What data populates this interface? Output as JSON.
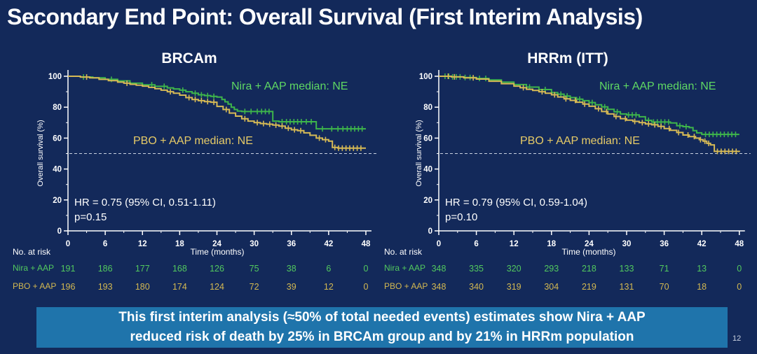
{
  "slide": {
    "title": "Secondary End Point: Overall Survival (First Interim Analysis)",
    "page_number": "12",
    "banner": {
      "line1": "This first interim analysis (≈50% of total needed events) estimates show Nira + AAP",
      "line2": "reduced risk of death by 25% in BRCAm group and by 21% in HRRm population"
    }
  },
  "colors": {
    "background": "#13295a",
    "banner_blue": "#1f74ab",
    "axis_white": "#ffffff",
    "nira_curve_green": "#3eb54b",
    "nira_text_green": "#5fd863",
    "pbo_curve_gold": "#d7ba55",
    "pbo_text_gold": "#e7cb67",
    "reference_dash": "#c9d1e0"
  },
  "chart_data": [
    {
      "type": "line",
      "subtype": "kaplan-meier",
      "title": "BRCAm",
      "xlabel": "Time (months)",
      "ylabel": "Overall survival (%)",
      "xlim": [
        0,
        48
      ],
      "ylim": [
        0,
        100
      ],
      "xticks": [
        0,
        6,
        12,
        18,
        24,
        30,
        36,
        42,
        48
      ],
      "yticks": [
        0,
        20,
        40,
        60,
        80,
        100
      ],
      "grid": false,
      "reference_line_y": 50,
      "hr_text": "HR = 0.75 (95% CI, 0.51-1.11)",
      "p_text": "p=0.15",
      "series": [
        {
          "name": "Nira + AAP",
          "label": "Nira + AAP median: NE",
          "color": "#3eb54b",
          "steps": [
            [
              0,
              100
            ],
            [
              2,
              99.5
            ],
            [
              4,
              99
            ],
            [
              6,
              98
            ],
            [
              8,
              97
            ],
            [
              10,
              95.5
            ],
            [
              12,
              94.5
            ],
            [
              14,
              93.5
            ],
            [
              16,
              92.5
            ],
            [
              17,
              91.8
            ],
            [
              18,
              91
            ],
            [
              19,
              90
            ],
            [
              20,
              89
            ],
            [
              21,
              88
            ],
            [
              22,
              87.5
            ],
            [
              23,
              87
            ],
            [
              24,
              86.5
            ],
            [
              24.8,
              85
            ],
            [
              25.3,
              83.5
            ],
            [
              25.8,
              82
            ],
            [
              26.3,
              80
            ],
            [
              26.8,
              78.5
            ],
            [
              27.3,
              77.5
            ],
            [
              28,
              77.2
            ],
            [
              33,
              71
            ],
            [
              34,
              70.6
            ],
            [
              40,
              66
            ],
            [
              48,
              66
            ]
          ],
          "censor_times": [
            2.5,
            7,
            13.5,
            15.5,
            18.5,
            20.5,
            21.5,
            22.5,
            23.5,
            28.5,
            29.5,
            30.5,
            31.2,
            31.8,
            32.4,
            34.5,
            35.2,
            35.8,
            36.4,
            37,
            37.6,
            38.4,
            39.2,
            41,
            42.5,
            43.5,
            44.3,
            45,
            45.6,
            46.2,
            46.8,
            47.4
          ]
        },
        {
          "name": "PBO + AAP",
          "label": "PBO + AAP median: NE",
          "color": "#d7ba55",
          "steps": [
            [
              0,
              100
            ],
            [
              2,
              99.5
            ],
            [
              3.5,
              99
            ],
            [
              5,
              98
            ],
            [
              6.5,
              97.2
            ],
            [
              8,
              96.2
            ],
            [
              9,
              95.5
            ],
            [
              10,
              94.8
            ],
            [
              11,
              94.2
            ],
            [
              12,
              93.6
            ],
            [
              13,
              92.8
            ],
            [
              14,
              92
            ],
            [
              15,
              91
            ],
            [
              16,
              90
            ],
            [
              17,
              89
            ],
            [
              18,
              87.8
            ],
            [
              19,
              86.2
            ],
            [
              20,
              85
            ],
            [
              21,
              84.2
            ],
            [
              22,
              83.6
            ],
            [
              23,
              83.2
            ],
            [
              24,
              80.5
            ],
            [
              25,
              78.5
            ],
            [
              26,
              76.2
            ],
            [
              27,
              74.2
            ],
            [
              28,
              72.5
            ],
            [
              29,
              71
            ],
            [
              30,
              70
            ],
            [
              31,
              69.4
            ],
            [
              32,
              69
            ],
            [
              33,
              68.4
            ],
            [
              34,
              67.8
            ],
            [
              35,
              66.4
            ],
            [
              36,
              65.4
            ],
            [
              37,
              64.8
            ],
            [
              38,
              63.4
            ],
            [
              39,
              61.8
            ],
            [
              40,
              60
            ],
            [
              41,
              59
            ],
            [
              42,
              58
            ],
            [
              42.6,
              54
            ],
            [
              43.5,
              53.5
            ],
            [
              48,
              53.5
            ]
          ],
          "censor_times": [
            3,
            9.5,
            16.5,
            19.5,
            20.5,
            21.5,
            22.5,
            23.5,
            25.5,
            28.5,
            30.5,
            31.5,
            32.5,
            33.5,
            34.5,
            35.5,
            36.5,
            37.5,
            40.5,
            41.5,
            43,
            43.6,
            44.2,
            44.8,
            45.4,
            46,
            46.6,
            47.2
          ]
        }
      ],
      "at_risk": {
        "header": "No. at risk",
        "rows": [
          {
            "name": "Nira + AAP",
            "color": "#52c95e",
            "values": [
              191,
              186,
              177,
              168,
              126,
              75,
              38,
              6,
              0
            ]
          },
          {
            "name": "PBO + AAP",
            "color": "#d3b851",
            "values": [
              196,
              193,
              180,
              174,
              124,
              72,
              39,
              12,
              0
            ]
          }
        ]
      }
    },
    {
      "type": "line",
      "subtype": "kaplan-meier",
      "title": "HRRm (ITT)",
      "xlabel": "Time (months)",
      "ylabel": "Overall survival (%)",
      "xlim": [
        0,
        48
      ],
      "ylim": [
        0,
        100
      ],
      "xticks": [
        0,
        6,
        12,
        18,
        24,
        30,
        36,
        42,
        48
      ],
      "yticks": [
        0,
        20,
        40,
        60,
        80,
        100
      ],
      "grid": false,
      "reference_line_y": 50,
      "hr_text": "HR = 0.79 (95% CI, 0.59-1.04)",
      "p_text": "p=0.10",
      "series": [
        {
          "name": "Nira + AAP",
          "label": "Nira + AAP median: NE",
          "color": "#3eb54b",
          "steps": [
            [
              0,
              100
            ],
            [
              2,
              99.6
            ],
            [
              4,
              99.2
            ],
            [
              6,
              98.6
            ],
            [
              8,
              97.6
            ],
            [
              10,
              96.2
            ],
            [
              12,
              94.6
            ],
            [
              14,
              93
            ],
            [
              16,
              91.4
            ],
            [
              18,
              89.4
            ],
            [
              19,
              88.4
            ],
            [
              20,
              87.2
            ],
            [
              21,
              86.2
            ],
            [
              22,
              85.2
            ],
            [
              23,
              84.2
            ],
            [
              24,
              83
            ],
            [
              25,
              81.6
            ],
            [
              26,
              80.2
            ],
            [
              27,
              78.6
            ],
            [
              28,
              77
            ],
            [
              29,
              75.6
            ],
            [
              30,
              75
            ],
            [
              32,
              73.8
            ],
            [
              33,
              71.5
            ],
            [
              34,
              70.4
            ],
            [
              37,
              69.8
            ],
            [
              38,
              68
            ],
            [
              39,
              67.4
            ],
            [
              40,
              66.8
            ],
            [
              40.6,
              64.8
            ],
            [
              41.2,
              63.4
            ],
            [
              42,
              62.4
            ],
            [
              48,
              62.4
            ]
          ],
          "censor_times": [
            1,
            1.6,
            2.2,
            2.8,
            3.4,
            4.2,
            5,
            6.5,
            7.5,
            14.5,
            17,
            19.5,
            20.5,
            22.5,
            24.5,
            26.5,
            28.5,
            30.3,
            30.9,
            31.5,
            33.5,
            34.3,
            34.9,
            35.5,
            36.1,
            36.7,
            38.5,
            39.5,
            42.6,
            43.2,
            43.8,
            44.4,
            45,
            45.6,
            46.2,
            46.8,
            47.4
          ]
        },
        {
          "name": "PBO + AAP",
          "label": "PBO + AAP median: NE",
          "color": "#d7ba55",
          "steps": [
            [
              0,
              100
            ],
            [
              2,
              99.6
            ],
            [
              4,
              99
            ],
            [
              6,
              98.2
            ],
            [
              8,
              96.8
            ],
            [
              10,
              95.2
            ],
            [
              12,
              93.6
            ],
            [
              13,
              92.6
            ],
            [
              14,
              91.6
            ],
            [
              15,
              90.8
            ],
            [
              16,
              90
            ],
            [
              17,
              89
            ],
            [
              18,
              88
            ],
            [
              19,
              86.6
            ],
            [
              20,
              85.4
            ],
            [
              21,
              84.4
            ],
            [
              22,
              83.2
            ],
            [
              23,
              82
            ],
            [
              24,
              80.6
            ],
            [
              25,
              79
            ],
            [
              26,
              77.2
            ],
            [
              27,
              75.6
            ],
            [
              28,
              74
            ],
            [
              29,
              72.6
            ],
            [
              30,
              71.6
            ],
            [
              31,
              70.8
            ],
            [
              32,
              70
            ],
            [
              33,
              69.2
            ],
            [
              34,
              68.6
            ],
            [
              35,
              67.6
            ],
            [
              36,
              66.2
            ],
            [
              37,
              65
            ],
            [
              38,
              63.6
            ],
            [
              39,
              62
            ],
            [
              40,
              61
            ],
            [
              41,
              60
            ],
            [
              41.6,
              59
            ],
            [
              42.2,
              58
            ],
            [
              42.8,
              56.6
            ],
            [
              43.4,
              55.6
            ],
            [
              44,
              51.4
            ],
            [
              48,
              51
            ]
          ],
          "censor_times": [
            1.5,
            2.5,
            5.5,
            13.5,
            16.5,
            18.5,
            20.3,
            21.8,
            23.3,
            25.5,
            26.8,
            28.3,
            29.8,
            31.3,
            32.5,
            33.5,
            34.5,
            35.5,
            36.8,
            38.3,
            39.8,
            40.8,
            41.8,
            42.5,
            43.1,
            44.5,
            45.1,
            45.7,
            46.3,
            46.9,
            47.5
          ]
        }
      ],
      "at_risk": {
        "header": "No. at risk",
        "rows": [
          {
            "name": "Nira + AAP",
            "color": "#52c95e",
            "values": [
              348,
              335,
              320,
              293,
              218,
              133,
              71,
              13,
              0
            ]
          },
          {
            "name": "PBO + AAP",
            "color": "#d3b851",
            "values": [
              348,
              340,
              319,
              304,
              219,
              131,
              70,
              18,
              0
            ]
          }
        ]
      }
    }
  ]
}
